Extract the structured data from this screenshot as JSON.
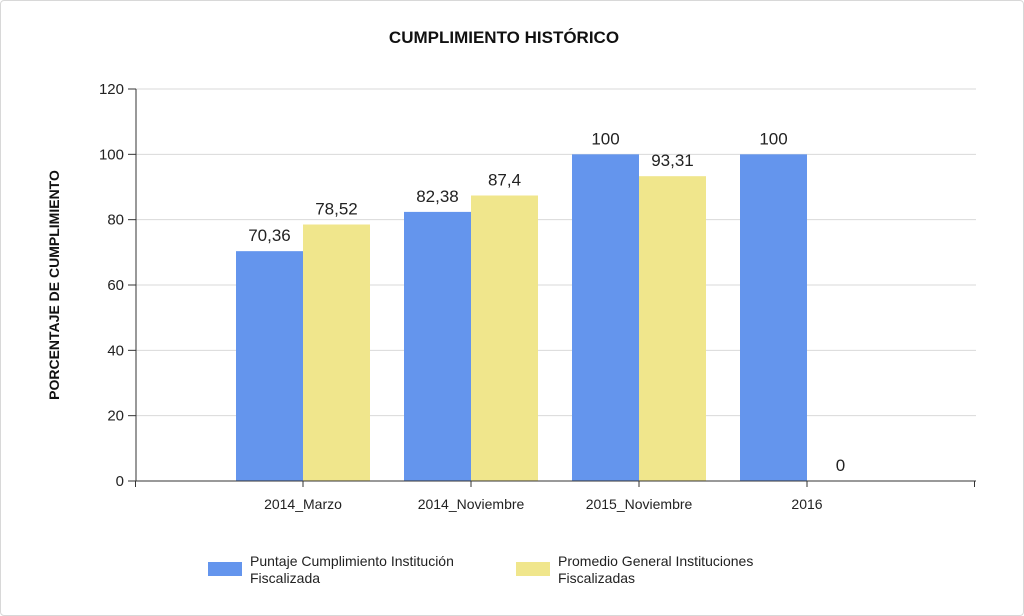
{
  "chart_data": {
    "type": "bar",
    "title": "CUMPLIMIENTO HISTÓRICO",
    "xlabel": "",
    "ylabel": "PORCENTAJE DE CUMPLIMIENTO",
    "ylim": [
      0,
      120
    ],
    "yticks": [
      0,
      20,
      40,
      60,
      80,
      100,
      120
    ],
    "grid": true,
    "legend_position": "bottom",
    "categories": [
      "2014_Marzo",
      "2014_Noviembre",
      "2015_Noviembre",
      "2016"
    ],
    "series": [
      {
        "name": "Puntaje Cumplimiento Institución Fiscalizada",
        "legend_lines": [
          "Puntaje Cumplimiento Institución",
          "Fiscalizada"
        ],
        "color": "#6495ED",
        "values": [
          70.36,
          82.38,
          100,
          100
        ],
        "labels": [
          "70,36",
          "82,38",
          "100",
          "100"
        ]
      },
      {
        "name": "Promedio General Instituciones Fiscalizadas",
        "legend_lines": [
          "Promedio General Instituciones",
          "Fiscalizadas"
        ],
        "color": "#F0E68C",
        "values": [
          78.52,
          87.4,
          93.31,
          0
        ],
        "labels": [
          "78,52",
          "87,4",
          "93,31",
          "0"
        ]
      }
    ]
  }
}
